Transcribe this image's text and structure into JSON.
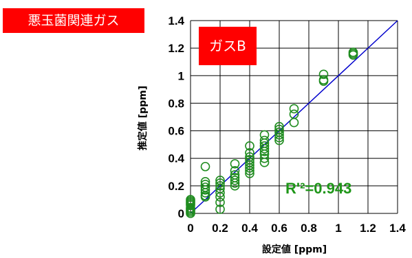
{
  "category_badge": {
    "text": "悪玉菌関連ガス",
    "bg": "#ff0000"
  },
  "series_badge": {
    "text": "ガスB",
    "bg": "#ff0000"
  },
  "r2_label": {
    "text": "R'²=0.943",
    "color": "#1e9618"
  },
  "colors": {
    "marker": "#1f8c1f",
    "fit_line": "#0000cc",
    "grid": "#000000"
  },
  "chart_data": {
    "type": "scatter",
    "xlabel": "設定値 [ppm]",
    "ylabel": "推定値 [ppm]",
    "xlim": [
      0,
      1.4
    ],
    "ylim": [
      0,
      1.4
    ],
    "xticks": [
      0,
      0.2,
      0.4,
      0.6,
      0.8,
      1,
      1.2,
      1.4
    ],
    "yticks": [
      0,
      0.2,
      0.4,
      0.6,
      0.8,
      1,
      1.2,
      1.4
    ],
    "xtick_labels": [
      "0",
      "0.2",
      "0.4",
      "0.6",
      "0.8",
      "1",
      "1.2",
      "1.4"
    ],
    "ytick_labels": [
      "0",
      "0.2",
      "0.4",
      "0.6",
      "0.8",
      "1",
      "1.2",
      "1.4"
    ],
    "grid": true,
    "fit_line": {
      "x": [
        0,
        1.4
      ],
      "y": [
        0,
        1.4
      ]
    },
    "annotations": [
      "R'²=0.943"
    ],
    "points": [
      [
        0,
        0.0
      ],
      [
        0,
        0.01
      ],
      [
        0,
        0.02
      ],
      [
        0,
        0.03
      ],
      [
        0,
        0.04
      ],
      [
        0,
        0.06
      ],
      [
        0,
        0.07
      ],
      [
        0,
        0.08
      ],
      [
        0,
        0.09
      ],
      [
        0,
        0.1
      ],
      [
        0.1,
        0.12
      ],
      [
        0.1,
        0.13
      ],
      [
        0.1,
        0.15
      ],
      [
        0.1,
        0.17
      ],
      [
        0.1,
        0.19
      ],
      [
        0.1,
        0.21
      ],
      [
        0.1,
        0.23
      ],
      [
        0.1,
        0.34
      ],
      [
        0.2,
        0.03
      ],
      [
        0.2,
        0.08
      ],
      [
        0.2,
        0.12
      ],
      [
        0.2,
        0.15
      ],
      [
        0.2,
        0.18
      ],
      [
        0.2,
        0.2
      ],
      [
        0.2,
        0.22
      ],
      [
        0.2,
        0.24
      ],
      [
        0.3,
        0.2
      ],
      [
        0.3,
        0.22
      ],
      [
        0.3,
        0.24
      ],
      [
        0.3,
        0.26
      ],
      [
        0.3,
        0.28
      ],
      [
        0.3,
        0.31
      ],
      [
        0.3,
        0.36
      ],
      [
        0.4,
        0.29
      ],
      [
        0.4,
        0.31
      ],
      [
        0.4,
        0.33
      ],
      [
        0.4,
        0.35
      ],
      [
        0.4,
        0.37
      ],
      [
        0.4,
        0.39
      ],
      [
        0.4,
        0.41
      ],
      [
        0.4,
        0.44
      ],
      [
        0.4,
        0.49
      ],
      [
        0.5,
        0.37
      ],
      [
        0.5,
        0.4
      ],
      [
        0.5,
        0.43
      ],
      [
        0.5,
        0.45
      ],
      [
        0.5,
        0.47
      ],
      [
        0.5,
        0.49
      ],
      [
        0.5,
        0.51
      ],
      [
        0.5,
        0.53
      ],
      [
        0.5,
        0.57
      ],
      [
        0.6,
        0.53
      ],
      [
        0.6,
        0.55
      ],
      [
        0.6,
        0.57
      ],
      [
        0.6,
        0.59
      ],
      [
        0.6,
        0.61
      ],
      [
        0.6,
        0.63
      ],
      [
        0.7,
        0.66
      ],
      [
        0.7,
        0.72
      ],
      [
        0.7,
        0.76
      ],
      [
        0.9,
        0.96
      ],
      [
        0.9,
        0.97
      ],
      [
        0.9,
        1.01
      ],
      [
        1.1,
        1.15
      ],
      [
        1.1,
        1.16
      ],
      [
        1.1,
        1.17
      ]
    ]
  }
}
